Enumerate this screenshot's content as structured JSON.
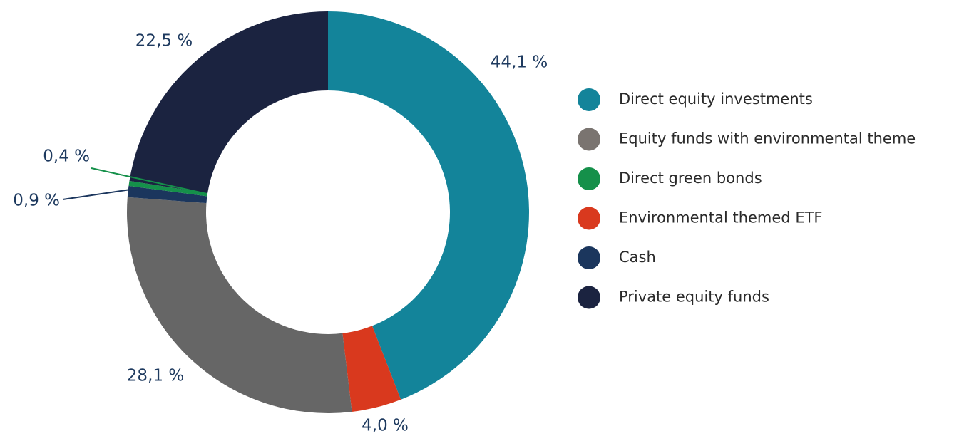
{
  "chart_data": {
    "type": "donut",
    "categories": [
      "Direct equity investments",
      "Equity funds with environmental theme",
      "Direct green bonds",
      "Environmental themed ETF",
      "Cash",
      "Private equity funds"
    ],
    "values": [
      44.1,
      28.1,
      0.4,
      4.0,
      0.9,
      22.5
    ],
    "value_labels": [
      "44,1 %",
      "28,1 %",
      "0,4 %",
      "4,0 %",
      "0,9 %",
      "22,5 %"
    ],
    "colors": [
      "#13849a",
      "#666666",
      "#15904a",
      "#d9391e",
      "#1b365d",
      "#1b2340"
    ],
    "legend_colors": [
      "#13849a",
      "#7a7470",
      "#15904a",
      "#d9391e",
      "#1b365d",
      "#1b2340"
    ],
    "legend": "right"
  }
}
